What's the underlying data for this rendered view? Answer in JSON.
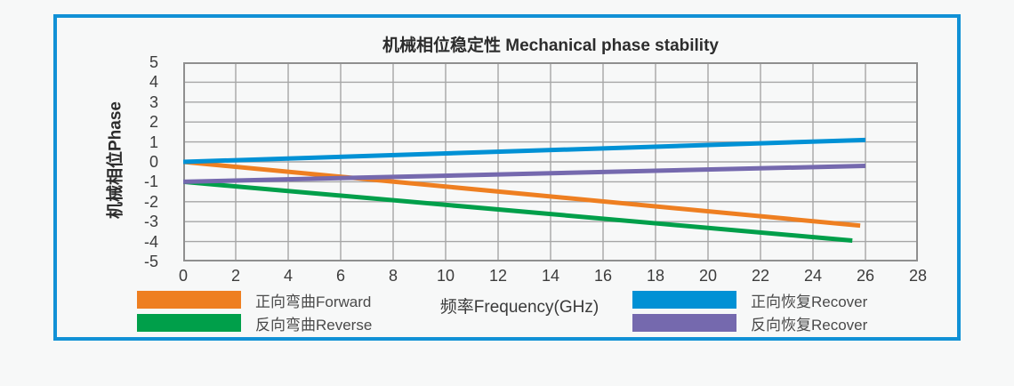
{
  "page": {
    "background_color": "#f7f8f8",
    "card_border_color": "#1191d6",
    "gridline_color": "#a6a6a6",
    "plot_border_color": "#8f8f8f"
  },
  "chart_data": {
    "type": "line",
    "title": "机械相位稳定性 Mechanical phase stability",
    "xlabel": "频率Frequency(GHz)",
    "ylabel": "机械相位Phase",
    "x_range": [
      0,
      28
    ],
    "y_range": [
      -5,
      5
    ],
    "x_ticks": [
      0,
      2,
      4,
      6,
      8,
      10,
      12,
      14,
      16,
      18,
      20,
      22,
      24,
      26,
      28
    ],
    "y_ticks": [
      5,
      4,
      3,
      2,
      1,
      0,
      -1,
      -2,
      -3,
      -4,
      -5
    ],
    "grid": true,
    "legend_position": "bottom",
    "series": [
      {
        "name": "正向弯曲Forward",
        "color": "#EE7F21",
        "points": [
          [
            0,
            0
          ],
          [
            25.8,
            -3.2
          ]
        ]
      },
      {
        "name": "反向弯曲Reverse",
        "color": "#009F4A",
        "points": [
          [
            0,
            -1
          ],
          [
            25.5,
            -3.95
          ]
        ]
      },
      {
        "name": "正向恢复Recover",
        "color": "#0091D5",
        "points": [
          [
            0,
            0
          ],
          [
            26,
            1.1
          ]
        ]
      },
      {
        "name": "反向恢复Recover",
        "color": "#7569AE",
        "points": [
          [
            0,
            -1
          ],
          [
            26,
            -0.2
          ]
        ]
      }
    ]
  }
}
